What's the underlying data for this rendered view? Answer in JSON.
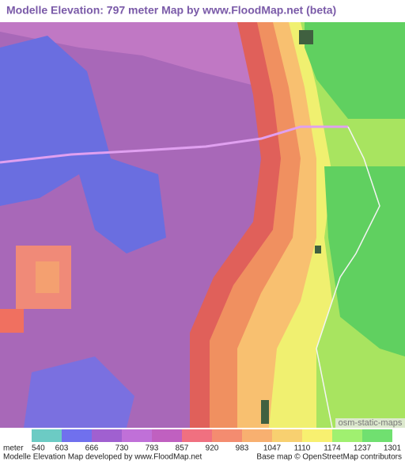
{
  "header": {
    "title": "Modelle Elevation: 797 meter Map by www.FloodMap.net (beta)"
  },
  "map": {
    "watermark": "osm-static-maps"
  },
  "legend": {
    "unit": "meter",
    "values": [
      540,
      603,
      666,
      730,
      793,
      857,
      920,
      983,
      1047,
      1110,
      1174,
      1237,
      1301
    ],
    "colors": [
      "#6ccbc4",
      "#7070ee",
      "#a060d0",
      "#c070d8",
      "#c060c0",
      "#f07080",
      "#f48c70",
      "#f8b070",
      "#f8d070",
      "#f8f070",
      "#a0f070",
      "#70e070"
    ]
  },
  "footer": {
    "left": "Modelle Elevation Map developed by www.FloodMap.net",
    "right": "Base map © OpenStreetMap contributors"
  }
}
